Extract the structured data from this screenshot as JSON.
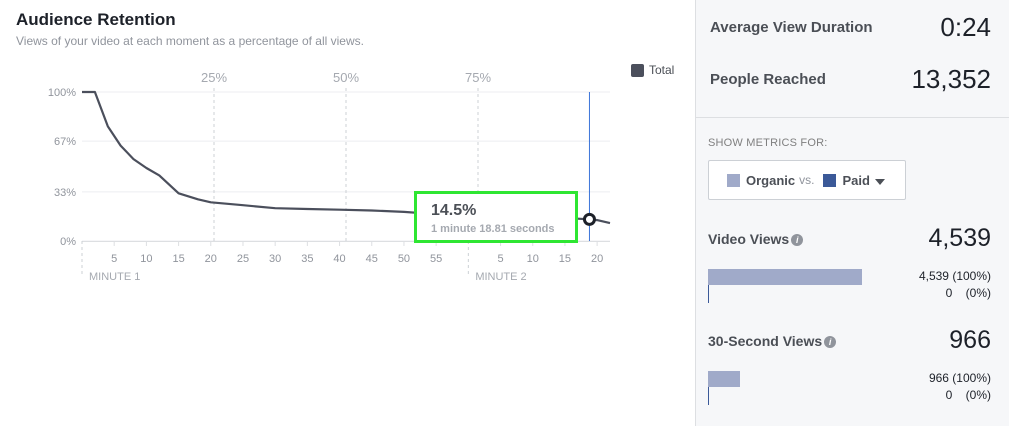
{
  "header": {
    "title": "Audience Retention",
    "subtitle": "Views of your video at each moment as a percentage of all views."
  },
  "legend": {
    "label": "Total",
    "color": "#4b4f5c"
  },
  "tooltip": {
    "value": "14.5%",
    "time": "1 minute 18.81 seconds"
  },
  "chart_data": {
    "type": "line",
    "series": [
      {
        "name": "Total",
        "x": [
          0,
          2,
          4,
          6,
          8,
          10,
          12,
          15,
          18,
          20,
          25,
          30,
          35,
          40,
          45,
          50,
          55,
          60,
          65,
          70,
          75,
          77,
          78.81,
          80,
          82
        ],
        "y": [
          100,
          100,
          77,
          64,
          55,
          49,
          44,
          32,
          28,
          26,
          24,
          22,
          21.5,
          21,
          20.5,
          19.5,
          18,
          17,
          16.5,
          16,
          15.5,
          15,
          14.5,
          14,
          12
        ]
      }
    ],
    "x_ticks": [
      "5",
      "10",
      "15",
      "20",
      "25",
      "30",
      "35",
      "40",
      "45",
      "50",
      "55",
      "5",
      "10",
      "15",
      "20"
    ],
    "x_tick_values": [
      5,
      10,
      15,
      20,
      25,
      30,
      35,
      40,
      45,
      50,
      55,
      65,
      70,
      75,
      80
    ],
    "minute_labels": [
      {
        "label": "MINUTE 1",
        "x": 0
      },
      {
        "label": "MINUTE 2",
        "x": 60
      }
    ],
    "y_ticks": [
      "100%",
      "67%",
      "33%",
      "0%"
    ],
    "y_tick_values": [
      100,
      67,
      33,
      0
    ],
    "progress_markers": [
      {
        "label": "25%",
        "x": 20.5
      },
      {
        "label": "50%",
        "x": 41
      },
      {
        "label": "75%",
        "x": 61.5
      }
    ],
    "xlim": [
      0,
      82
    ],
    "ylim": [
      0,
      100
    ],
    "cursor_x": 78.81,
    "line_color": "#4b4f5c",
    "cursor_color": "#3b74d8"
  },
  "sidebar": {
    "avg_view_duration": {
      "label": "Average View Duration",
      "value": "0:24"
    },
    "people_reached": {
      "label": "People Reached",
      "value": "13,352"
    },
    "show_metrics_label": "SHOW METRICS FOR:",
    "metric_selector": {
      "organic_label": "Organic",
      "vs_label": "vs.",
      "paid_label": "Paid",
      "organic_color": "#a0aac9",
      "paid_color": "#3b5998"
    },
    "video_views": {
      "label": "Video Views",
      "value": "4,539",
      "organic_text": "4,539 (100%)",
      "paid_text": "0    (0%)",
      "organic_fraction": 1.0
    },
    "thirty_sec_views": {
      "label": "30-Second Views",
      "value": "966",
      "organic_text": "966 (100%)",
      "paid_text": "0    (0%)",
      "organic_fraction": 0.21
    }
  }
}
